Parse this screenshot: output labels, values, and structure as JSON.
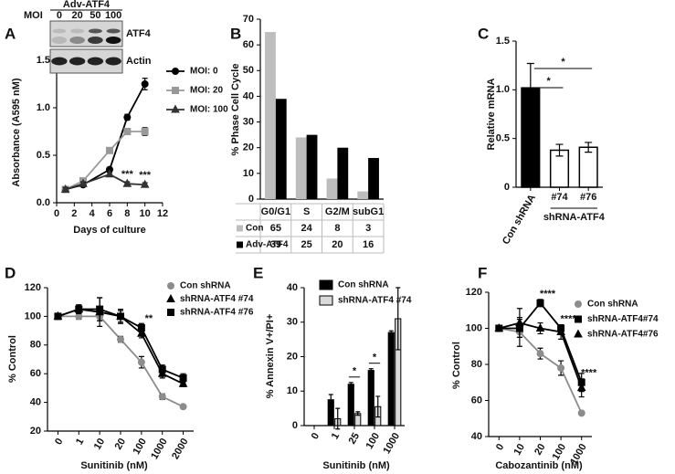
{
  "chart_data": [
    {
      "panel": "A",
      "type": "line",
      "y_label": "Absorbance (A595 nM)",
      "x_label": "Days of culture",
      "blot": {
        "group_label": "MOI",
        "title": "Adv-ATF4",
        "lanes": [
          "0",
          "20",
          "50",
          "100"
        ],
        "bands": [
          "ATF4",
          "Actin"
        ]
      },
      "x": [
        1,
        3,
        6,
        8,
        10
      ],
      "xlim": [
        0,
        12
      ],
      "xticks": [
        0,
        2,
        4,
        6,
        8,
        10,
        12
      ],
      "ylim": [
        0,
        1.5
      ],
      "yticks": [
        {
          "value": 0,
          "label": "0.0"
        },
        {
          "value": 0.5,
          "label": "0.5"
        },
        {
          "value": 1,
          "label": "1.0"
        },
        {
          "value": 1.5,
          "label": "1.5"
        }
      ],
      "series": [
        {
          "name": "MOI: 0",
          "color": "#000000",
          "marker": "circle",
          "values": [
            0.14,
            0.19,
            0.35,
            0.9,
            1.25
          ],
          "errors": [
            0.02,
            0.02,
            0.02,
            0.03,
            0.06
          ]
        },
        {
          "name": "MOI: 20",
          "color": "#999999",
          "marker": "square",
          "values": [
            0.14,
            0.23,
            0.55,
            0.75,
            0.75
          ],
          "errors": [
            0.02,
            0.02,
            0.02,
            0.03,
            0.04
          ]
        },
        {
          "name": "MOI: 100",
          "color": "#333333",
          "marker": "triangle",
          "values": [
            0.14,
            0.2,
            0.3,
            0.2,
            0.19
          ],
          "errors": [
            0.02,
            0.02,
            0.02,
            0.02,
            0.02
          ]
        }
      ],
      "annotations": [
        {
          "text": "***",
          "x": 8
        },
        {
          "text": "***",
          "x": 10
        }
      ]
    },
    {
      "panel": "B",
      "type": "bar",
      "y_label": "% Phase Cell Cycle",
      "categories": [
        "G0/G1",
        "S",
        "G2/M",
        "subG1"
      ],
      "ylim": [
        0,
        70
      ],
      "yticks": [
        0,
        10,
        20,
        30,
        40,
        50,
        60,
        70
      ],
      "table": true,
      "series": [
        {
          "name": "Con",
          "color": "#bdbdbd",
          "values": [
            65,
            24,
            8,
            3
          ]
        },
        {
          "name": "Adv-ATF4",
          "color": "#000000",
          "values": [
            39,
            25,
            20,
            16
          ]
        }
      ]
    },
    {
      "panel": "C",
      "type": "bar",
      "y_label": "Relative mRNA",
      "categories": [
        "Con shRNA",
        "#74",
        "#76"
      ],
      "group_label": "shRNA-ATF4",
      "ylim": [
        0,
        1.5
      ],
      "yticks": [
        0,
        0.5,
        {
          "value": 1,
          "label": "1.0"
        },
        {
          "value": 1.5,
          "label": "1.5"
        }
      ],
      "values": [
        1.02,
        0.38,
        0.41
      ],
      "errors": [
        0.25,
        0.06,
        0.05
      ],
      "bar_colors": [
        "#000000",
        "#ffffff",
        "#ffffff"
      ],
      "brackets": [
        {
          "text": "*",
          "from": 0,
          "to": 1
        },
        {
          "text": "*",
          "from": 0,
          "to": 2
        }
      ]
    },
    {
      "panel": "D",
      "type": "line",
      "y_label": "% Control",
      "x_label": "Sunitinib (nM)",
      "categories": [
        "0",
        "1",
        "10",
        "20",
        "100",
        "1000",
        "2000"
      ],
      "ylim": [
        20,
        120
      ],
      "yticks": [
        20,
        40,
        60,
        80,
        100,
        120
      ],
      "series": [
        {
          "name": "Con shRNA",
          "color": "#8c8c8c",
          "marker": "circle",
          "values": [
            100,
            100,
            100,
            84,
            68,
            44,
            37
          ],
          "errors": [
            0,
            2,
            3,
            2,
            4,
            2,
            1
          ]
        },
        {
          "name": "shRNA-ATF4 #74",
          "color": "#000000",
          "marker": "triangle",
          "values": [
            100,
            105,
            103,
            100,
            88,
            60,
            53
          ],
          "errors": [
            0,
            3,
            10,
            4,
            3,
            3,
            2
          ]
        },
        {
          "name": "shRNA-ATF4 #76",
          "color": "#000000",
          "marker": "square",
          "values": [
            100,
            105,
            105,
            100,
            92,
            63,
            57
          ],
          "errors": [
            0,
            3,
            8,
            5,
            3,
            3,
            3
          ]
        }
      ],
      "annotations": [
        {
          "text": "**",
          "x": "100"
        }
      ]
    },
    {
      "panel": "E",
      "type": "bar",
      "y_label": "% Annexin V+/PI+",
      "x_label": "Sunitinib (nM)",
      "categories": [
        "0",
        "1",
        "25",
        "100",
        "1000"
      ],
      "ylim": [
        0,
        40
      ],
      "yticks": [
        0,
        10,
        20,
        30,
        40
      ],
      "series": [
        {
          "name": "Con shRNA",
          "color": "#000000",
          "values": [
            0,
            7.5,
            12,
            16,
            27
          ],
          "errors": [
            0,
            1.5,
            0.5,
            0.5,
            0.5
          ]
        },
        {
          "name": "shRNA-ATF4 #74",
          "color": "#d9d9d9",
          "values": [
            0,
            2,
            3.5,
            5.5,
            31
          ],
          "errors": [
            0,
            3,
            0.5,
            3,
            9
          ]
        }
      ],
      "annotations": [
        {
          "text": "*",
          "x": "25"
        },
        {
          "text": "*",
          "x": "100"
        }
      ]
    },
    {
      "panel": "F",
      "type": "line",
      "y_label": "% Control",
      "x_label": "Cabozantinib (nM)",
      "categories": [
        "0",
        "10",
        "20",
        "100",
        "1000"
      ],
      "ylim": [
        40,
        120
      ],
      "yticks": [
        40,
        60,
        80,
        100,
        120
      ],
      "series": [
        {
          "name": "Con shRNA",
          "color": "#8c8c8c",
          "marker": "circle",
          "values": [
            100,
            98,
            86,
            78,
            53
          ],
          "errors": [
            0,
            8,
            3,
            4,
            1
          ]
        },
        {
          "name": "shRNA-ATF4#74",
          "color": "#000000",
          "marker": "square",
          "values": [
            100,
            100,
            114,
            100,
            70
          ],
          "errors": [
            0,
            5,
            2,
            2,
            5
          ]
        },
        {
          "name": "shRNA-ATF4#76",
          "color": "#000000",
          "marker": "triangle",
          "values": [
            100,
            103,
            100,
            98,
            67
          ],
          "errors": [
            0,
            8,
            3,
            4,
            5
          ]
        }
      ],
      "annotations": [
        {
          "text": "****",
          "x": "20"
        },
        {
          "text": "****",
          "x": "100"
        },
        {
          "text": "****",
          "x": "1000"
        }
      ]
    }
  ]
}
